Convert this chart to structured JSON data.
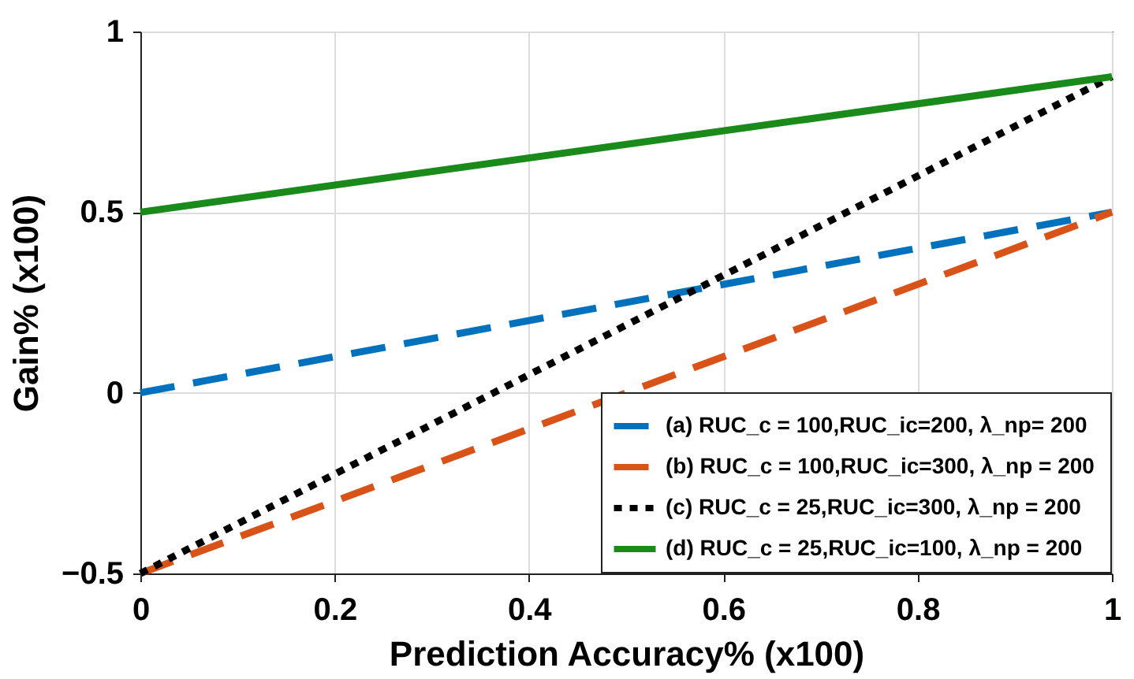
{
  "chart_data": {
    "type": "line",
    "xlabel": "Prediction Accuracy% (x100)",
    "ylabel": "Gain% (x100)",
    "x": [
      0,
      1
    ],
    "series": [
      {
        "name": "(a) RUC_c = 100,RUC_ic=200,  λ_np= 200",
        "color": "#0072bd",
        "values": [
          0,
          0.5
        ],
        "line_style": "dashed"
      },
      {
        "name": "(b) RUC_c = 100,RUC_ic=300,  λ_np = 200",
        "color": "#d95319",
        "values": [
          -0.5,
          0.5
        ],
        "line_style": "dashed"
      },
      {
        "name": "(c) RUC_c = 25,RUC_ic=300,  λ_np = 200",
        "color": "#000000",
        "values": [
          -0.5,
          0.875
        ],
        "line_style": "dotted"
      },
      {
        "name": "(d) RUC_c = 25,RUC_ic=100,  λ_np = 200",
        "color": "#1a8a1a",
        "values": [
          0.5,
          0.875
        ],
        "line_style": "solid"
      }
    ],
    "xlim": [
      0,
      1
    ],
    "xticks": [
      0,
      0.2,
      0.4,
      0.6,
      0.8,
      1
    ],
    "ylim": [
      -0.5,
      1
    ],
    "yticks": [
      -0.5,
      0,
      0.5,
      1
    ],
    "grid": true,
    "legend": "bottom right",
    "marker": "none"
  }
}
